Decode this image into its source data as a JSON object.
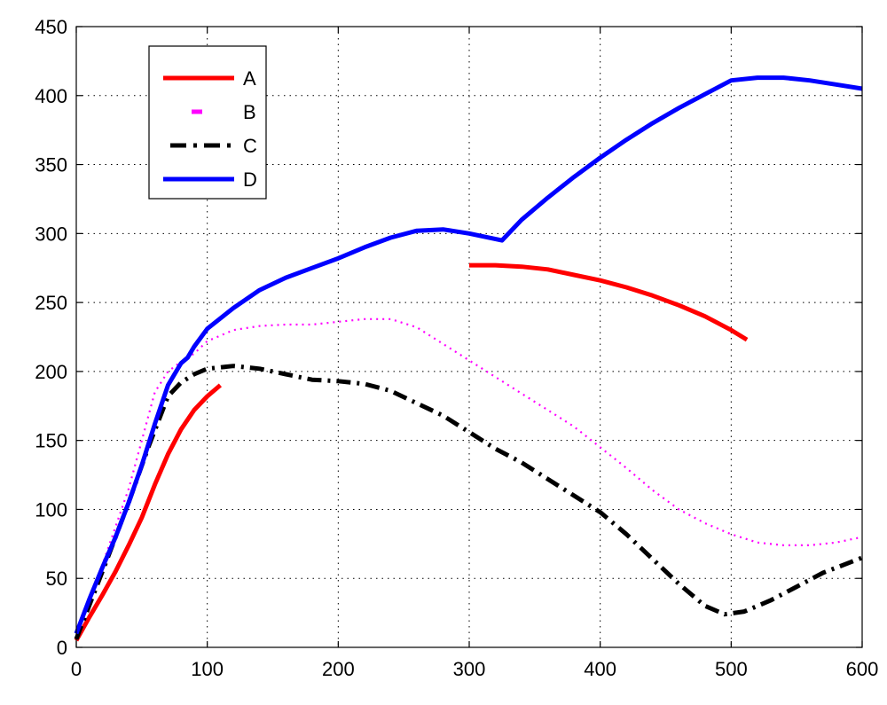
{
  "chart_data": {
    "type": "line",
    "title": "",
    "xlabel": "",
    "ylabel": "",
    "xlim": [
      0,
      600
    ],
    "ylim": [
      0,
      450
    ],
    "xticks": [
      0,
      100,
      200,
      300,
      400,
      500,
      600
    ],
    "yticks": [
      0,
      50,
      100,
      150,
      200,
      250,
      300,
      350,
      400,
      450
    ],
    "grid": true,
    "legend_position": "top-left",
    "series": [
      {
        "name": "A",
        "color": "#ff0000",
        "line_style": "solid",
        "segments": [
          [
            [
              0,
              5
            ],
            [
              10,
              22
            ],
            [
              20,
              38
            ],
            [
              30,
              55
            ],
            [
              40,
              74
            ],
            [
              50,
              94
            ],
            [
              60,
              118
            ],
            [
              70,
              140
            ],
            [
              80,
              158
            ],
            [
              90,
              172
            ],
            [
              100,
              182
            ],
            [
              110,
              190
            ]
          ],
          [
            [
              300,
              277
            ],
            [
              320,
              277
            ],
            [
              340,
              276
            ],
            [
              360,
              274
            ],
            [
              380,
              270
            ],
            [
              400,
              266
            ],
            [
              420,
              261
            ],
            [
              440,
              255
            ],
            [
              460,
              248
            ],
            [
              480,
              240
            ],
            [
              500,
              230
            ],
            [
              512,
              223
            ]
          ]
        ]
      },
      {
        "name": "B",
        "color": "#ff00ff",
        "line_style": "dotted",
        "segments": [
          [
            [
              0,
              8
            ],
            [
              20,
              60
            ],
            [
              40,
              115
            ],
            [
              60,
              185
            ],
            [
              70,
              200
            ],
            [
              80,
              207
            ],
            [
              90,
              213
            ],
            [
              100,
              222
            ],
            [
              120,
              230
            ],
            [
              140,
              233
            ],
            [
              160,
              234
            ],
            [
              180,
              234
            ],
            [
              200,
              236
            ],
            [
              220,
              238
            ],
            [
              240,
              238
            ],
            [
              260,
              232
            ],
            [
              280,
              220
            ],
            [
              300,
              208
            ],
            [
              320,
              196
            ],
            [
              340,
              184
            ],
            [
              360,
              172
            ],
            [
              380,
              160
            ],
            [
              400,
              145
            ],
            [
              420,
              130
            ],
            [
              440,
              114
            ],
            [
              460,
              100
            ],
            [
              480,
              90
            ],
            [
              500,
              82
            ],
            [
              520,
              76
            ],
            [
              540,
              74
            ],
            [
              560,
              74
            ],
            [
              580,
              76
            ],
            [
              600,
              80
            ]
          ]
        ]
      },
      {
        "name": "C",
        "color": "#000000",
        "line_style": "dashdot",
        "segments": [
          [
            [
              0,
              6
            ],
            [
              20,
              55
            ],
            [
              40,
              105
            ],
            [
              55,
              145
            ],
            [
              70,
              182
            ],
            [
              80,
              192
            ],
            [
              90,
              198
            ],
            [
              100,
              202
            ],
            [
              120,
              204
            ],
            [
              140,
              202
            ],
            [
              160,
              198
            ],
            [
              180,
              194
            ],
            [
              200,
              193
            ],
            [
              220,
              191
            ],
            [
              240,
              186
            ],
            [
              260,
              177
            ],
            [
              280,
              168
            ],
            [
              300,
              156
            ],
            [
              320,
              144
            ],
            [
              340,
              134
            ],
            [
              360,
              122
            ],
            [
              380,
              110
            ],
            [
              400,
              98
            ],
            [
              420,
              82
            ],
            [
              440,
              64
            ],
            [
              460,
              46
            ],
            [
              480,
              30
            ],
            [
              495,
              24
            ],
            [
              510,
              26
            ],
            [
              530,
              34
            ],
            [
              550,
              44
            ],
            [
              570,
              54
            ],
            [
              600,
              65
            ]
          ]
        ]
      },
      {
        "name": "D",
        "color": "#0000ff",
        "line_style": "solid",
        "segments": [
          [
            [
              0,
              10
            ],
            [
              10,
              35
            ],
            [
              20,
              58
            ],
            [
              30,
              80
            ],
            [
              40,
              105
            ],
            [
              50,
              132
            ],
            [
              60,
              162
            ],
            [
              70,
              190
            ],
            [
              80,
              206
            ],
            [
              85,
              210
            ],
            [
              90,
              218
            ],
            [
              100,
              231
            ],
            [
              120,
              246
            ],
            [
              140,
              259
            ],
            [
              160,
              268
            ],
            [
              180,
              275
            ],
            [
              200,
              282
            ],
            [
              220,
              290
            ],
            [
              240,
              297
            ],
            [
              260,
              302
            ],
            [
              280,
              303
            ],
            [
              300,
              300
            ],
            [
              310,
              298
            ],
            [
              325,
              295
            ],
            [
              340,
              310
            ],
            [
              360,
              326
            ],
            [
              380,
              341
            ],
            [
              400,
              355
            ],
            [
              420,
              368
            ],
            [
              440,
              380
            ],
            [
              460,
              391
            ],
            [
              480,
              401
            ],
            [
              500,
              411
            ],
            [
              520,
              413
            ],
            [
              540,
              413
            ],
            [
              560,
              411
            ],
            [
              580,
              408
            ],
            [
              600,
              405
            ]
          ]
        ]
      }
    ]
  }
}
